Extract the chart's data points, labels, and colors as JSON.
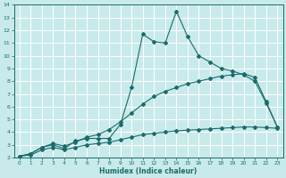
{
  "xlabel": "Humidex (Indice chaleur)",
  "background_color": "#c8eaea",
  "grid_color": "#b0d8d8",
  "line_color": "#1a6b6b",
  "xlim": [
    -0.5,
    23.5
  ],
  "ylim": [
    2,
    14
  ],
  "xticks": [
    0,
    1,
    2,
    3,
    4,
    5,
    6,
    7,
    8,
    9,
    10,
    11,
    12,
    13,
    14,
    15,
    16,
    17,
    18,
    19,
    20,
    21,
    22,
    23
  ],
  "yticks": [
    2,
    3,
    4,
    5,
    6,
    7,
    8,
    9,
    10,
    11,
    12,
    13,
    14
  ],
  "series1_x": [
    0,
    1,
    2,
    3,
    4,
    5,
    6,
    7,
    8,
    9,
    10,
    11,
    12,
    13,
    14,
    15,
    16,
    17,
    18,
    19,
    20,
    21,
    22,
    23
  ],
  "series1_y": [
    2.1,
    2.3,
    2.8,
    3.0,
    2.7,
    3.3,
    3.5,
    3.5,
    3.5,
    4.6,
    7.5,
    11.7,
    11.1,
    11.0,
    13.5,
    11.5,
    10.0,
    9.5,
    9.0,
    8.8,
    8.5,
    8.0,
    6.3,
    4.4
  ],
  "series2_x": [
    0,
    1,
    2,
    3,
    4,
    5,
    6,
    7,
    8,
    9,
    10,
    11,
    12,
    13,
    14,
    15,
    16,
    17,
    18,
    19,
    20,
    21,
    22,
    23
  ],
  "series2_y": [
    2.1,
    2.3,
    2.8,
    3.1,
    2.9,
    3.2,
    3.6,
    3.8,
    4.2,
    4.8,
    5.5,
    6.2,
    6.8,
    7.2,
    7.5,
    7.8,
    8.0,
    8.2,
    8.4,
    8.5,
    8.6,
    8.3,
    6.4,
    4.4
  ],
  "series3_x": [
    0,
    1,
    2,
    3,
    4,
    5,
    6,
    7,
    8,
    9,
    10,
    11,
    12,
    13,
    14,
    15,
    16,
    17,
    18,
    19,
    20,
    21,
    22,
    23
  ],
  "series3_y": [
    2.1,
    2.2,
    2.6,
    2.8,
    2.6,
    2.8,
    3.0,
    3.1,
    3.2,
    3.4,
    3.6,
    3.8,
    3.9,
    4.0,
    4.1,
    4.15,
    4.2,
    4.25,
    4.3,
    4.35,
    4.4,
    4.4,
    4.35,
    4.3
  ]
}
